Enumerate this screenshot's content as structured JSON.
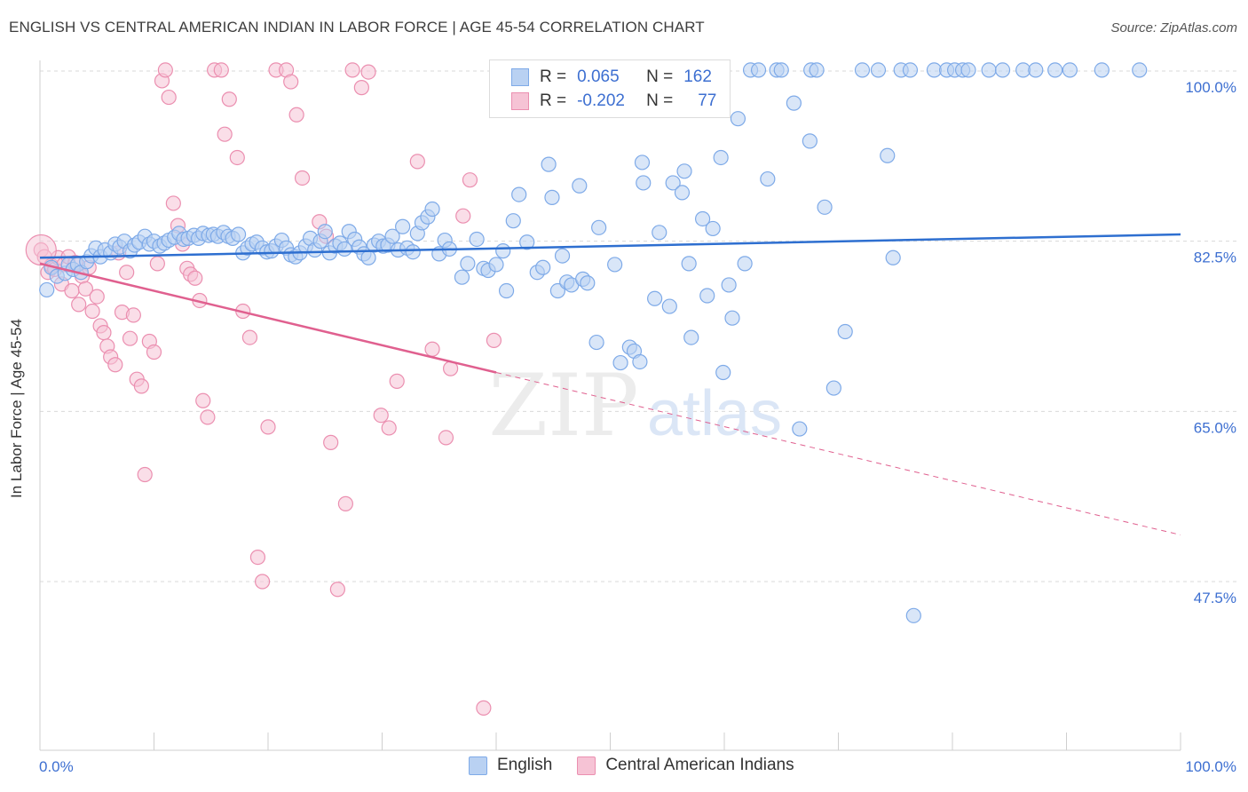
{
  "title": "ENGLISH VS CENTRAL AMERICAN INDIAN IN LABOR FORCE | AGE 45-54 CORRELATION CHART",
  "source": "Source: ZipAtlas.com",
  "watermark": {
    "zip": "ZIP",
    "atlas": "atlas"
  },
  "legend": {
    "english": {
      "r_label": "R =",
      "r_value": "0.065",
      "n_label": "N =",
      "n_value": "162"
    },
    "cai": {
      "r_label": "R =",
      "r_value": "-0.202",
      "n_label": "N =",
      "n_value": "77"
    }
  },
  "bottom_legend": {
    "english": "English",
    "cai": "Central American Indians"
  },
  "colors": {
    "english": "#7eaae8",
    "english_fill": "#b9d1f2",
    "english_line": "#2e6fd0",
    "cai": "#eb8fb0",
    "cai_fill": "#f6c3d5",
    "cai_line": "#e0608f",
    "grid": "#d9d9d9",
    "axis_label": "#3d6fd1"
  },
  "chart_data": {
    "type": "scatter",
    "title": "ENGLISH VS CENTRAL AMERICAN INDIAN IN LABOR FORCE | AGE 45-54 CORRELATION CHART",
    "xlabel": "",
    "ylabel": "In Labor Force | Age 45-54",
    "xlim": [
      0,
      100
    ],
    "ylim": [
      31,
      101
    ],
    "x_ticks": [
      "0.0%",
      "100.0%"
    ],
    "y_ticks": [
      {
        "value": 100.0,
        "label": "100.0%"
      },
      {
        "value": 82.5,
        "label": "82.5%"
      },
      {
        "value": 65.0,
        "label": "65.0%"
      },
      {
        "value": 47.5,
        "label": "47.5%"
      }
    ],
    "grid": true,
    "legend_position": "top-center",
    "series": [
      {
        "name": "English",
        "trend": {
          "x": [
            0,
            100
          ],
          "y": [
            80.8,
            83.2
          ]
        },
        "points": [
          [
            0.6,
            77.5
          ],
          [
            1.0,
            79.8
          ],
          [
            1.5,
            78.9
          ],
          [
            2.2,
            79.2
          ],
          [
            2.5,
            80.1
          ],
          [
            2.9,
            79.6
          ],
          [
            3.3,
            80.1
          ],
          [
            3.6,
            79.3
          ],
          [
            4.1,
            80.4
          ],
          [
            4.5,
            81.0
          ],
          [
            4.9,
            81.8
          ],
          [
            5.3,
            80.9
          ],
          [
            5.7,
            81.6
          ],
          [
            6.2,
            81.3
          ],
          [
            6.6,
            82.2
          ],
          [
            7.0,
            81.9
          ],
          [
            7.4,
            82.5
          ],
          [
            7.9,
            81.5
          ],
          [
            8.3,
            82.1
          ],
          [
            8.7,
            82.4
          ],
          [
            9.2,
            83.0
          ],
          [
            9.6,
            82.2
          ],
          [
            10.0,
            82.5
          ],
          [
            10.5,
            82.0
          ],
          [
            10.9,
            82.3
          ],
          [
            11.3,
            82.6
          ],
          [
            11.8,
            82.9
          ],
          [
            12.2,
            83.3
          ],
          [
            12.6,
            82.7
          ],
          [
            13.0,
            82.8
          ],
          [
            13.5,
            83.1
          ],
          [
            13.9,
            82.8
          ],
          [
            14.3,
            83.3
          ],
          [
            14.8,
            83.1
          ],
          [
            15.2,
            83.2
          ],
          [
            15.6,
            83.0
          ],
          [
            16.1,
            83.4
          ],
          [
            16.5,
            83.0
          ],
          [
            16.9,
            82.8
          ],
          [
            17.4,
            83.2
          ],
          [
            17.8,
            81.3
          ],
          [
            18.2,
            81.8
          ],
          [
            18.6,
            82.2
          ],
          [
            19.0,
            82.4
          ],
          [
            19.5,
            81.8
          ],
          [
            19.9,
            81.4
          ],
          [
            20.3,
            81.5
          ],
          [
            20.7,
            82.0
          ],
          [
            21.2,
            82.6
          ],
          [
            21.6,
            81.8
          ],
          [
            22.0,
            81.1
          ],
          [
            22.4,
            80.9
          ],
          [
            22.8,
            81.3
          ],
          [
            23.3,
            82.0
          ],
          [
            23.7,
            82.8
          ],
          [
            24.1,
            81.6
          ],
          [
            24.6,
            82.5
          ],
          [
            25.0,
            83.5
          ],
          [
            25.4,
            81.3
          ],
          [
            25.9,
            82.0
          ],
          [
            26.3,
            82.3
          ],
          [
            26.7,
            81.7
          ],
          [
            27.1,
            83.5
          ],
          [
            27.6,
            82.7
          ],
          [
            28.0,
            81.9
          ],
          [
            28.4,
            81.2
          ],
          [
            28.8,
            80.8
          ],
          [
            29.3,
            82.1
          ],
          [
            29.7,
            82.5
          ],
          [
            30.1,
            82.0
          ],
          [
            30.5,
            82.1
          ],
          [
            30.9,
            83.0
          ],
          [
            31.4,
            81.6
          ],
          [
            31.8,
            84.0
          ],
          [
            32.2,
            81.8
          ],
          [
            32.7,
            81.4
          ],
          [
            33.1,
            83.3
          ],
          [
            33.5,
            84.4
          ],
          [
            34.0,
            85.0
          ],
          [
            34.4,
            85.8
          ],
          [
            35.0,
            81.2
          ],
          [
            35.5,
            82.6
          ],
          [
            35.9,
            81.7
          ],
          [
            37.0,
            78.8
          ],
          [
            37.5,
            80.2
          ],
          [
            38.3,
            82.7
          ],
          [
            38.9,
            79.7
          ],
          [
            39.3,
            79.5
          ],
          [
            40.0,
            80.1
          ],
          [
            40.6,
            81.5
          ],
          [
            40.9,
            77.4
          ],
          [
            41.5,
            84.6
          ],
          [
            42.0,
            87.3
          ],
          [
            42.7,
            82.4
          ],
          [
            43.6,
            79.3
          ],
          [
            44.1,
            79.8
          ],
          [
            44.6,
            90.4
          ],
          [
            44.9,
            87.0
          ],
          [
            45.4,
            77.4
          ],
          [
            45.8,
            81.0
          ],
          [
            46.2,
            78.3
          ],
          [
            46.6,
            78.0
          ],
          [
            47.3,
            88.2
          ],
          [
            47.6,
            78.6
          ],
          [
            48.0,
            78.2
          ],
          [
            48.8,
            72.1
          ],
          [
            49.0,
            83.9
          ],
          [
            50.4,
            80.1
          ],
          [
            50.9,
            70.0
          ],
          [
            51.7,
            71.6
          ],
          [
            52.1,
            71.2
          ],
          [
            52.6,
            70.1
          ],
          [
            52.8,
            90.6
          ],
          [
            52.9,
            88.5
          ],
          [
            53.9,
            76.6
          ],
          [
            54.3,
            83.4
          ],
          [
            55.2,
            75.8
          ],
          [
            55.5,
            88.5
          ],
          [
            56.3,
            87.5
          ],
          [
            56.5,
            89.7
          ],
          [
            56.9,
            80.2
          ],
          [
            57.1,
            72.6
          ],
          [
            58.1,
            84.8
          ],
          [
            58.5,
            76.9
          ],
          [
            59.0,
            83.8
          ],
          [
            59.7,
            91.1
          ],
          [
            59.9,
            69.0
          ],
          [
            60.4,
            78.0
          ],
          [
            60.7,
            74.6
          ],
          [
            61.2,
            95.1
          ],
          [
            61.8,
            80.2
          ],
          [
            62.3,
            100.1
          ],
          [
            63.0,
            100.1
          ],
          [
            63.8,
            88.9
          ],
          [
            64.6,
            100.1
          ],
          [
            65.0,
            100.1
          ],
          [
            66.1,
            96.7
          ],
          [
            66.6,
            63.2
          ],
          [
            67.5,
            92.8
          ],
          [
            67.6,
            100.1
          ],
          [
            68.1,
            100.1
          ],
          [
            68.8,
            86.0
          ],
          [
            69.6,
            67.4
          ],
          [
            70.6,
            73.2
          ],
          [
            72.1,
            100.1
          ],
          [
            73.5,
            100.1
          ],
          [
            74.3,
            91.3
          ],
          [
            74.8,
            80.8
          ],
          [
            75.5,
            100.1
          ],
          [
            76.3,
            100.1
          ],
          [
            76.6,
            44.0
          ],
          [
            78.4,
            100.1
          ],
          [
            79.5,
            100.1
          ],
          [
            80.2,
            100.1
          ],
          [
            80.9,
            100.1
          ],
          [
            81.4,
            100.1
          ],
          [
            83.2,
            100.1
          ],
          [
            84.4,
            100.1
          ],
          [
            86.2,
            100.1
          ],
          [
            87.3,
            100.1
          ],
          [
            89.0,
            100.1
          ],
          [
            90.3,
            100.1
          ],
          [
            93.1,
            100.1
          ],
          [
            96.4,
            100.1
          ]
        ]
      },
      {
        "name": "Central American Indians",
        "trend": {
          "x": [
            0,
            40
          ],
          "y": [
            80.2,
            69.0
          ]
        },
        "trend_dashed": {
          "x": [
            40,
            100
          ],
          "y": [
            69.0,
            52.3
          ]
        },
        "points": [
          [
            0.1,
            81.6
          ],
          [
            0.4,
            80.9
          ],
          [
            0.7,
            79.3
          ],
          [
            1.0,
            80.0
          ],
          [
            1.3,
            79.6
          ],
          [
            1.6,
            80.8
          ],
          [
            1.9,
            78.1
          ],
          [
            2.1,
            80.1
          ],
          [
            2.5,
            80.9
          ],
          [
            2.8,
            77.4
          ],
          [
            3.1,
            80.3
          ],
          [
            3.4,
            76.0
          ],
          [
            3.7,
            78.9
          ],
          [
            4.0,
            77.6
          ],
          [
            4.3,
            79.8
          ],
          [
            4.6,
            75.3
          ],
          [
            5.0,
            76.8
          ],
          [
            5.3,
            73.8
          ],
          [
            5.6,
            73.1
          ],
          [
            5.9,
            71.7
          ],
          [
            6.2,
            70.6
          ],
          [
            6.6,
            69.8
          ],
          [
            6.9,
            81.3
          ],
          [
            7.2,
            75.2
          ],
          [
            7.6,
            79.3
          ],
          [
            7.9,
            72.5
          ],
          [
            8.2,
            74.9
          ],
          [
            8.5,
            68.3
          ],
          [
            8.9,
            67.6
          ],
          [
            9.2,
            58.5
          ],
          [
            9.6,
            72.2
          ],
          [
            10.0,
            71.1
          ],
          [
            10.3,
            80.2
          ],
          [
            10.7,
            99.0
          ],
          [
            11.0,
            100.1
          ],
          [
            11.3,
            97.3
          ],
          [
            11.7,
            86.4
          ],
          [
            12.1,
            84.1
          ],
          [
            12.5,
            82.2
          ],
          [
            12.9,
            79.7
          ],
          [
            13.2,
            79.1
          ],
          [
            13.6,
            78.7
          ],
          [
            14.0,
            76.4
          ],
          [
            14.3,
            66.1
          ],
          [
            14.7,
            64.4
          ],
          [
            15.3,
            100.1
          ],
          [
            15.9,
            100.1
          ],
          [
            16.2,
            93.5
          ],
          [
            16.6,
            97.1
          ],
          [
            17.3,
            91.1
          ],
          [
            17.8,
            75.3
          ],
          [
            18.4,
            72.6
          ],
          [
            19.1,
            50.0
          ],
          [
            19.5,
            47.5
          ],
          [
            20.0,
            63.4
          ],
          [
            20.7,
            100.1
          ],
          [
            21.6,
            100.1
          ],
          [
            22.0,
            98.9
          ],
          [
            22.5,
            95.5
          ],
          [
            23.0,
            89.0
          ],
          [
            24.5,
            84.5
          ],
          [
            25.1,
            83.0
          ],
          [
            25.5,
            61.8
          ],
          [
            26.1,
            46.7
          ],
          [
            26.8,
            55.5
          ],
          [
            27.4,
            100.1
          ],
          [
            28.2,
            98.3
          ],
          [
            28.8,
            99.9
          ],
          [
            29.9,
            64.6
          ],
          [
            30.6,
            63.3
          ],
          [
            31.3,
            68.1
          ],
          [
            33.1,
            90.7
          ],
          [
            34.4,
            71.4
          ],
          [
            35.6,
            62.3
          ],
          [
            36.0,
            69.4
          ],
          [
            37.1,
            85.1
          ],
          [
            37.7,
            88.8
          ],
          [
            38.9,
            34.5
          ],
          [
            39.8,
            72.3
          ]
        ]
      }
    ]
  }
}
